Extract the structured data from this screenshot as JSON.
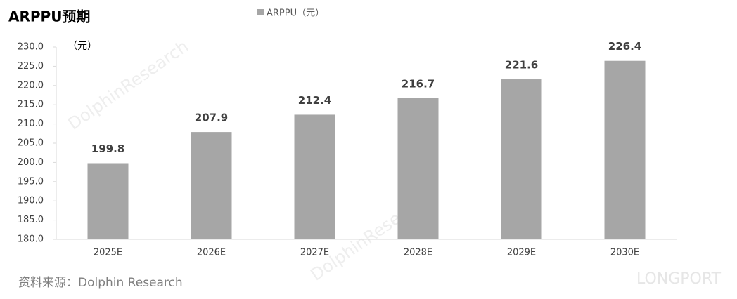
{
  "chart_data": {
    "type": "bar",
    "title": "ARPPU预期",
    "y_unit": "（元）",
    "source": "资料来源：Dolphin Research",
    "watermark": "DolphinResearch",
    "brand": "LONGPORT",
    "categories": [
      "2025E",
      "2026E",
      "2027E",
      "2028E",
      "2029E",
      "2030E"
    ],
    "series": [
      {
        "name": "ARPPU（元）",
        "color": "#a6a6a6",
        "values": [
          199.8,
          207.9,
          212.4,
          216.7,
          221.6,
          226.4
        ]
      }
    ],
    "ylim": [
      180,
      230
    ],
    "yticks": [
      {
        "value": 180,
        "label": "180.0"
      },
      {
        "value": 185,
        "label": "185.0"
      },
      {
        "value": 190,
        "label": "190.0"
      },
      {
        "value": 195,
        "label": "195.0"
      },
      {
        "value": 200,
        "label": "200.0"
      },
      {
        "value": 205,
        "label": "205.0"
      },
      {
        "value": 210,
        "label": "210.0"
      },
      {
        "value": 215,
        "label": "215.0"
      },
      {
        "value": 220,
        "label": "220.0"
      },
      {
        "value": 225,
        "label": "225.0"
      },
      {
        "value": 230,
        "label": "230.0"
      }
    ],
    "grid": false
  }
}
